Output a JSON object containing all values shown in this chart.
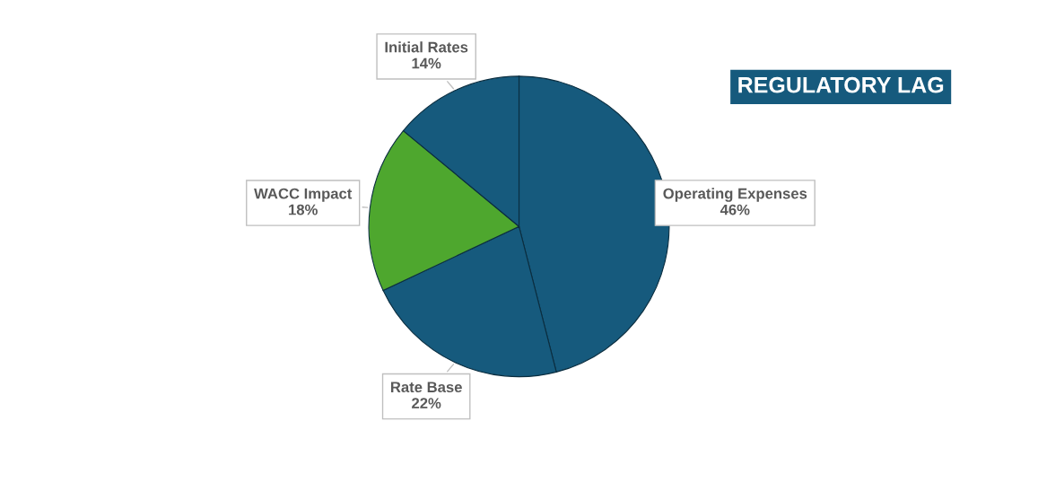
{
  "chart_data": {
    "type": "pie",
    "title": "REGULATORY LAG",
    "categories": [
      "Operating Expenses",
      "Rate Base",
      "WACC Impact",
      "Initial Rates"
    ],
    "values": [
      46,
      22,
      18,
      14
    ],
    "value_labels": [
      "46%",
      "22%",
      "18%",
      "14%"
    ],
    "colors": [
      "#165a7d",
      "#165a7d",
      "#4ea72e",
      "#165a7d"
    ],
    "legend": false
  }
}
